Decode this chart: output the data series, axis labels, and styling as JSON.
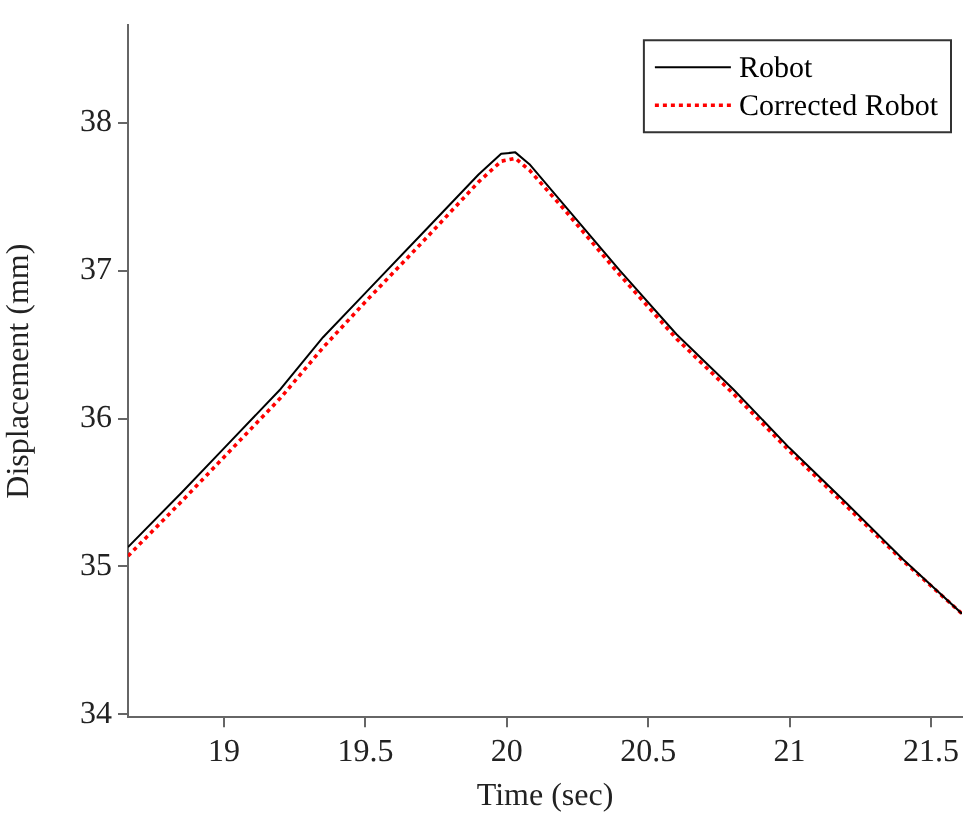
{
  "chart_data": {
    "type": "line",
    "xlabel": "Time (sec)",
    "ylabel": "Displacement (mm)",
    "xlim": [
      18.66,
      21.61
    ],
    "xticks": [
      19,
      19.5,
      20,
      20.5,
      21,
      21.5
    ],
    "ylim": [
      33.98,
      38.66
    ],
    "yticks": [
      34,
      35,
      36,
      37,
      38
    ],
    "grid": false,
    "legend": "top right",
    "marker": "none",
    "series": [
      {
        "name": "Robot",
        "color": "#000000",
        "line_style": "solid",
        "x": [
          18.66,
          18.85,
          19.0,
          19.2,
          19.35,
          19.5,
          19.7,
          19.9,
          19.98,
          20.03,
          20.08,
          20.2,
          20.4,
          20.6,
          20.8,
          21.0,
          21.2,
          21.4,
          21.61
        ],
        "values": [
          35.13,
          35.5,
          35.8,
          36.2,
          36.55,
          36.85,
          37.25,
          37.65,
          37.79,
          37.8,
          37.72,
          37.45,
          37.0,
          36.57,
          36.2,
          35.8,
          35.43,
          35.05,
          34.68
        ]
      },
      {
        "name": "Corrected Robot",
        "color": "#ff0000",
        "line_style": "dotted",
        "x": [
          18.66,
          18.85,
          19.0,
          19.2,
          19.35,
          19.5,
          19.7,
          19.9,
          19.98,
          20.03,
          20.08,
          20.2,
          20.4,
          20.6,
          20.8,
          21.0,
          21.2,
          21.4,
          21.61
        ],
        "values": [
          35.07,
          35.44,
          35.74,
          36.14,
          36.48,
          36.79,
          37.19,
          37.6,
          37.74,
          37.76,
          37.68,
          37.42,
          36.97,
          36.54,
          36.17,
          35.78,
          35.41,
          35.04,
          34.68
        ]
      }
    ]
  }
}
